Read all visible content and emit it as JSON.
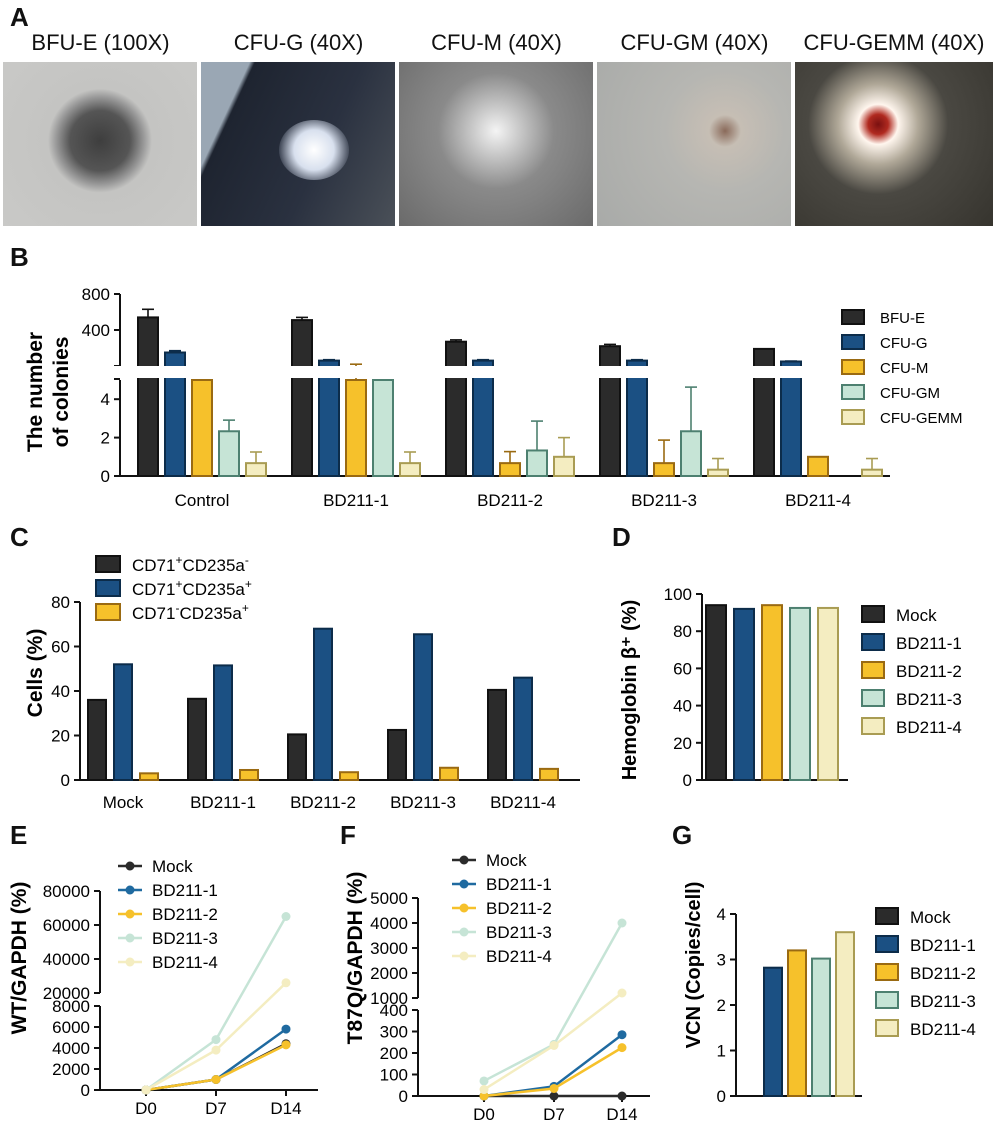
{
  "panels": {
    "a": "A",
    "b": "B",
    "c": "C",
    "d": "D",
    "e": "E",
    "f": "F",
    "g": "G"
  },
  "micrographs": [
    {
      "title": "BFU-E (100X)",
      "bg": "#c8c8c6",
      "center": "#4a4a4a"
    },
    {
      "title": "CFU-G (40X)",
      "bg": "#2c3340",
      "center": "#f4f4f0"
    },
    {
      "title": "CFU-M (40X)",
      "bg": "#6c6c6c",
      "center": "#e8e8e8"
    },
    {
      "title": "CFU-GM (40X)",
      "bg": "#b8b8b4",
      "center": "#d8d0c8"
    },
    {
      "title": "CFU-GEMM (40X)",
      "bg": "#3a3a36",
      "center": "#8a1a1a"
    }
  ],
  "colors": {
    "black": "#2b2b2b",
    "blue": "#1b5083",
    "orange": "#f6c12b",
    "lightgreen": "#c6e4d6",
    "lightyellow": "#f4edc1",
    "edge_orange": "#9a6a12",
    "edge_green": "#4d8070",
    "edge_yellow": "#a99c53"
  },
  "chart_data": [
    {
      "id": "B",
      "type": "bar",
      "ylabel": [
        "The number",
        "of colonies"
      ],
      "categories": [
        "Control",
        "BD211-1",
        "BD211-2",
        "BD211-3",
        "BD211-4"
      ],
      "series": [
        {
          "name": "BFU-E",
          "values": [
            540,
            510,
            270,
            220,
            190
          ],
          "errors": [
            90,
            30,
            20,
            20,
            0
          ]
        },
        {
          "name": "CFU-G",
          "values": [
            150,
            60,
            60,
            60,
            50
          ],
          "errors": [
            20,
            10,
            10,
            10,
            5
          ]
        },
        {
          "name": "CFU-M",
          "values": [
            5,
            5,
            0.67,
            0.67,
            1
          ],
          "errors": [
            0,
            15,
            0.6,
            1.2,
            0
          ]
        },
        {
          "name": "CFU-GM",
          "values": [
            2.33,
            5,
            1.33,
            2.33,
            0
          ],
          "errors": [
            0.58,
            0,
            1.53,
            2.3,
            0
          ]
        },
        {
          "name": "CFU-GEMM",
          "values": [
            0.67,
            0.67,
            1,
            0.33,
            0.33
          ],
          "errors": [
            0.58,
            0.58,
            1,
            0.58,
            0.58
          ]
        }
      ],
      "yticks_lower": [
        "0",
        "2",
        "4"
      ],
      "yticks_upper": [
        "400",
        "800"
      ],
      "ylim_lower": [
        0,
        5
      ],
      "ylim_upper": [
        0,
        800
      ]
    },
    {
      "id": "C",
      "type": "bar",
      "ylabel": "Cells (%)",
      "categories": [
        "Mock",
        "BD211-1",
        "BD211-2",
        "BD211-3",
        "BD211-4"
      ],
      "series": [
        {
          "name": "CD71+CD235a-",
          "values": [
            36,
            36.5,
            20.5,
            22.5,
            40.5
          ]
        },
        {
          "name": "CD71+CD235a+",
          "values": [
            52,
            51.5,
            68,
            65.5,
            46
          ]
        },
        {
          "name": "CD71-CD235a+",
          "values": [
            3,
            4.5,
            3.5,
            5.5,
            5
          ]
        }
      ],
      "ylim": [
        0,
        80
      ],
      "yticks": [
        "0",
        "20",
        "40",
        "60",
        "80"
      ]
    },
    {
      "id": "D",
      "type": "bar",
      "ylabel": "Hemoglobin β⁺ (%)",
      "categories": [
        "Mock",
        "BD211-1",
        "BD211-2",
        "BD211-3",
        "BD211-4"
      ],
      "values": [
        94,
        92,
        94,
        92.5,
        92.5
      ],
      "ylim": [
        0,
        100
      ],
      "yticks": [
        "0",
        "20",
        "40",
        "60",
        "80",
        "100"
      ]
    },
    {
      "id": "E",
      "type": "line",
      "ylabel": "WT/GAPDH (%)",
      "x": [
        "D0",
        "D7",
        "D14"
      ],
      "series": [
        {
          "name": "Mock",
          "values": [
            0,
            1000,
            4400
          ]
        },
        {
          "name": "BD211-1",
          "values": [
            0,
            1000,
            5800
          ]
        },
        {
          "name": "BD211-2",
          "values": [
            0,
            1000,
            4300
          ]
        },
        {
          "name": "BD211-3",
          "values": [
            0,
            4800,
            65000
          ]
        },
        {
          "name": "BD211-4",
          "values": [
            0,
            3800,
            26000
          ]
        }
      ],
      "yticks_lower": [
        "0",
        "2000",
        "4000",
        "6000",
        "8000"
      ],
      "yticks_upper": [
        "20000",
        "40000",
        "60000",
        "80000"
      ]
    },
    {
      "id": "F",
      "type": "line",
      "ylabel": "T87Q/GAPDH (%)",
      "x": [
        "D0",
        "D7",
        "D14"
      ],
      "series": [
        {
          "name": "Mock",
          "values": [
            0,
            0,
            0
          ]
        },
        {
          "name": "BD211-1",
          "values": [
            0,
            45,
            285
          ]
        },
        {
          "name": "BD211-2",
          "values": [
            0,
            35,
            225
          ]
        },
        {
          "name": "BD211-3",
          "values": [
            70,
            240,
            4000
          ]
        },
        {
          "name": "BD211-4",
          "values": [
            30,
            235,
            1200
          ]
        }
      ],
      "yticks_lower": [
        "0",
        "100",
        "200",
        "300",
        "400"
      ],
      "yticks_upper": [
        "1000",
        "2000",
        "3000",
        "4000",
        "5000"
      ]
    },
    {
      "id": "G",
      "type": "bar",
      "ylabel": "VCN (Copies/cell)",
      "categories": [
        "Mock",
        "BD211-1",
        "BD211-2",
        "BD211-3",
        "BD211-4"
      ],
      "values": [
        0,
        2.82,
        3.2,
        3.02,
        3.6
      ],
      "ylim": [
        0,
        4
      ],
      "yticks": [
        "0",
        "1",
        "2",
        "3",
        "4"
      ]
    }
  ]
}
